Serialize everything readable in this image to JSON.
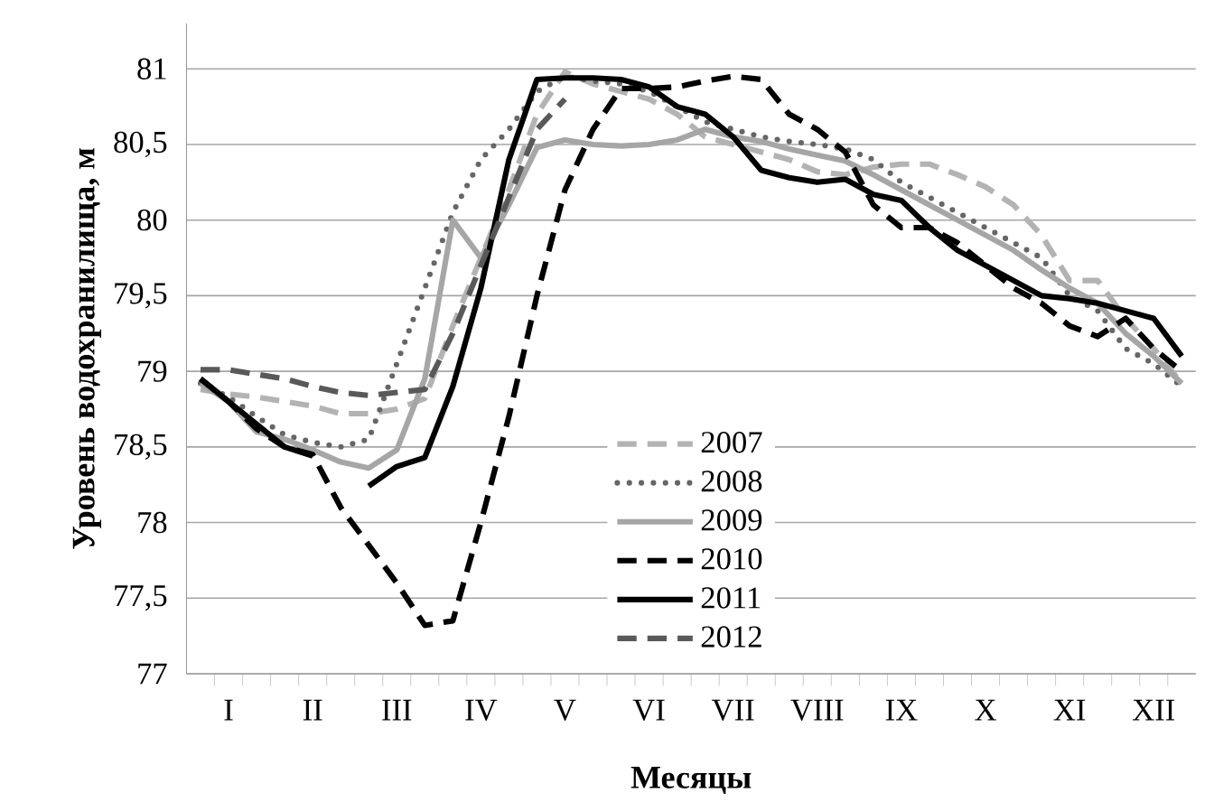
{
  "chart_data": {
    "type": "line",
    "xlabel": "Месяцы",
    "ylabel": "Уровень водохранилища, м",
    "categories": [
      null,
      "I",
      null,
      null,
      "II",
      null,
      null,
      "III",
      null,
      null,
      "IV",
      null,
      null,
      "V",
      null,
      null,
      "VI",
      null,
      null,
      "VII",
      null,
      null,
      "VIII",
      null,
      null,
      "IX",
      null,
      null,
      "X",
      null,
      null,
      "XI",
      null,
      null,
      "XII",
      null
    ],
    "ylim": [
      77,
      81.3
    ],
    "yticks": [
      77,
      {
        "value": 77.5,
        "label": "77,5"
      },
      78,
      {
        "value": 78.5,
        "label": "78,5"
      },
      79,
      {
        "value": 79.5,
        "label": "79,5"
      },
      80,
      {
        "value": 80.5,
        "label": "80,5"
      },
      81
    ],
    "grid": "y",
    "legend": "bottom",
    "series": [
      {
        "name": "2007",
        "color": "#b3b3b3",
        "line_style": "dashed",
        "values": [
          78.88,
          78.85,
          78.83,
          78.8,
          78.77,
          78.72,
          78.72,
          78.75,
          78.82,
          79.3,
          79.75,
          80.2,
          80.7,
          80.98,
          80.9,
          80.85,
          80.8,
          80.7,
          80.55,
          80.5,
          80.45,
          80.4,
          80.32,
          80.3,
          80.35,
          80.37,
          80.37,
          80.3,
          80.22,
          80.1,
          79.9,
          79.6,
          79.6,
          79.35,
          79.15,
          78.92
        ]
      },
      {
        "name": "2008",
        "color": "#666666",
        "line_style": "dotted",
        "values": [
          78.92,
          78.83,
          78.7,
          78.58,
          78.53,
          78.5,
          78.55,
          79.05,
          79.55,
          80.05,
          80.4,
          80.6,
          80.85,
          80.95,
          80.92,
          80.9,
          80.85,
          80.75,
          80.65,
          80.6,
          80.55,
          80.52,
          80.5,
          80.47,
          80.4,
          80.25,
          80.15,
          80.05,
          79.95,
          79.85,
          79.75,
          79.5,
          79.4,
          79.15,
          79.05,
          78.9
        ]
      },
      {
        "name": "2009",
        "color": "#a6a6a6",
        "line_style": "solid",
        "values": [
          78.92,
          78.8,
          78.6,
          78.55,
          78.48,
          78.4,
          78.36,
          78.48,
          78.95,
          80.0,
          79.75,
          80.1,
          80.48,
          80.53,
          80.5,
          80.49,
          80.5,
          80.53,
          80.6,
          80.55,
          80.52,
          80.47,
          80.43,
          80.39,
          80.3,
          80.2,
          80.1,
          80.0,
          79.9,
          79.8,
          79.67,
          79.55,
          79.45,
          79.25,
          79.1,
          78.92
        ]
      },
      {
        "name": "2010",
        "color": "#000000",
        "line_style": "dashed",
        "values": [
          78.95,
          78.8,
          78.62,
          78.5,
          78.45,
          78.1,
          77.85,
          77.6,
          77.32,
          77.35,
          78.0,
          78.7,
          79.5,
          80.2,
          80.6,
          80.87,
          80.87,
          80.88,
          80.92,
          80.95,
          80.93,
          80.7,
          80.6,
          80.45,
          80.1,
          79.95,
          79.95,
          79.85,
          79.7,
          79.55,
          79.45,
          79.3,
          79.23,
          79.35,
          79.15,
          79.0
        ]
      },
      {
        "name": "2011",
        "color": "#000000",
        "line_style": "solid",
        "values": [
          78.95,
          78.8,
          78.65,
          78.5,
          78.44,
          null,
          78.24,
          78.37,
          78.43,
          78.9,
          79.55,
          80.4,
          80.93,
          80.94,
          80.94,
          80.93,
          80.88,
          80.75,
          80.7,
          80.55,
          80.33,
          80.28,
          80.25,
          80.27,
          80.17,
          80.13,
          79.95,
          79.8,
          79.7,
          79.6,
          79.5,
          79.48,
          79.45,
          79.4,
          79.35,
          79.1
        ]
      },
      {
        "name": "2012",
        "color": "#595959",
        "line_style": "dashed",
        "values": [
          79.01,
          79.01,
          78.98,
          78.95,
          78.9,
          78.86,
          78.84,
          78.86,
          78.88,
          79.25,
          79.7,
          80.15,
          80.6,
          80.8,
          null,
          null,
          null,
          null,
          null,
          null,
          null,
          null,
          null,
          null,
          null,
          null,
          null,
          null,
          null,
          null,
          null,
          null,
          null,
          null,
          null,
          null
        ]
      }
    ]
  }
}
